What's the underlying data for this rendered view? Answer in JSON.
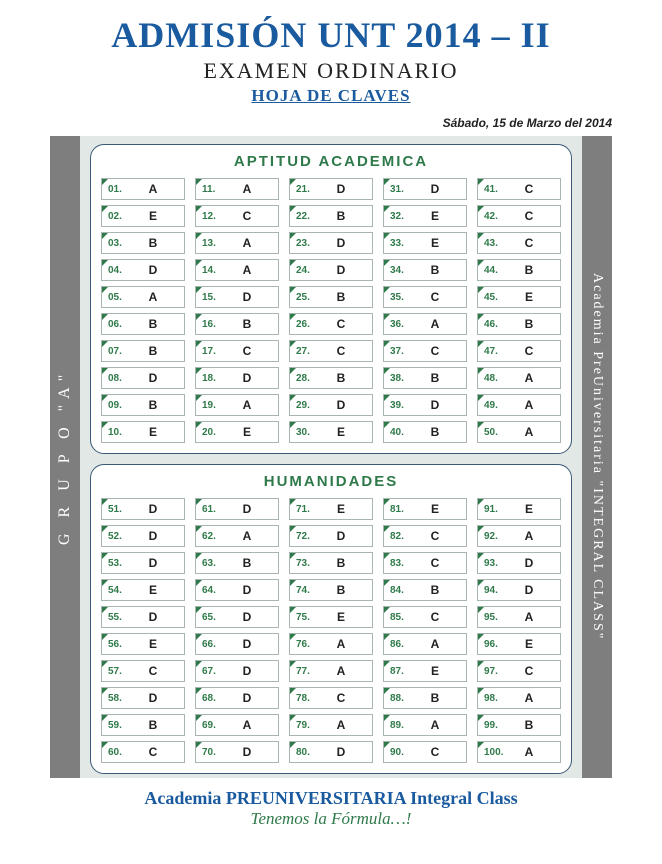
{
  "header": {
    "main_title": "ADMISIÓN  UNT 2014 – II",
    "subtitle": "EXAMEN ORDINARIO",
    "hoja": "HOJA DE CLAVES",
    "date": "Sábado, 15 de Marzo del 2014"
  },
  "left_band": "G R U P O   \"A\"",
  "right_band": "Academia PreUniversitaria \"INTEGRAL CLASS\"",
  "sections": [
    {
      "title": "APTITUD ACADEMICA",
      "start": 1,
      "answers": {
        "1": "A",
        "2": "E",
        "3": "B",
        "4": "D",
        "5": "A",
        "6": "B",
        "7": "B",
        "8": "D",
        "9": "B",
        "10": "E",
        "11": "A",
        "12": "C",
        "13": "A",
        "14": "A",
        "15": "D",
        "16": "B",
        "17": "C",
        "18": "D",
        "19": "A",
        "20": "E",
        "21": "D",
        "22": "B",
        "23": "D",
        "24": "D",
        "25": "B",
        "26": "C",
        "27": "C",
        "28": "B",
        "29": "D",
        "30": "E",
        "31": "D",
        "32": "E",
        "33": "E",
        "34": "B",
        "35": "C",
        "36": "A",
        "37": "C",
        "38": "B",
        "39": "D",
        "40": "B",
        "41": "C",
        "42": "C",
        "43": "C",
        "44": "B",
        "45": "E",
        "46": "B",
        "47": "C",
        "48": "A",
        "49": "A",
        "50": "A"
      }
    },
    {
      "title": "HUMANIDADES",
      "start": 51,
      "answers": {
        "51": "D",
        "52": "D",
        "53": "D",
        "54": "E",
        "55": "D",
        "56": "E",
        "57": "C",
        "58": "D",
        "59": "B",
        "60": "C",
        "61": "D",
        "62": "A",
        "63": "B",
        "64": "D",
        "65": "D",
        "66": "D",
        "67": "D",
        "68": "D",
        "69": "A",
        "70": "D",
        "71": "E",
        "72": "D",
        "73": "B",
        "74": "B",
        "75": "E",
        "76": "A",
        "77": "A",
        "78": "C",
        "79": "A",
        "80": "D",
        "81": "E",
        "82": "C",
        "83": "C",
        "84": "B",
        "85": "C",
        "86": "A",
        "87": "E",
        "88": "B",
        "89": "A",
        "90": "C",
        "91": "E",
        "92": "A",
        "93": "D",
        "94": "D",
        "95": "A",
        "96": "E",
        "97": "C",
        "98": "A",
        "99": "B",
        "100": "A"
      }
    }
  ],
  "footer": {
    "line1": "Academia PREUNIVERSITARIA Integral Class",
    "line2": "Tenemos la Fórmula…!"
  },
  "style": {
    "title_color": "#1a5a9e",
    "section_title_color": "#2f7a4a",
    "band_bg": "#7e7e7e",
    "mid_bg": "#e2e8e6",
    "panel_border": "#3a5a77",
    "cell_border": "#a9b5b1",
    "qnum_color": "#2f7a4a"
  }
}
